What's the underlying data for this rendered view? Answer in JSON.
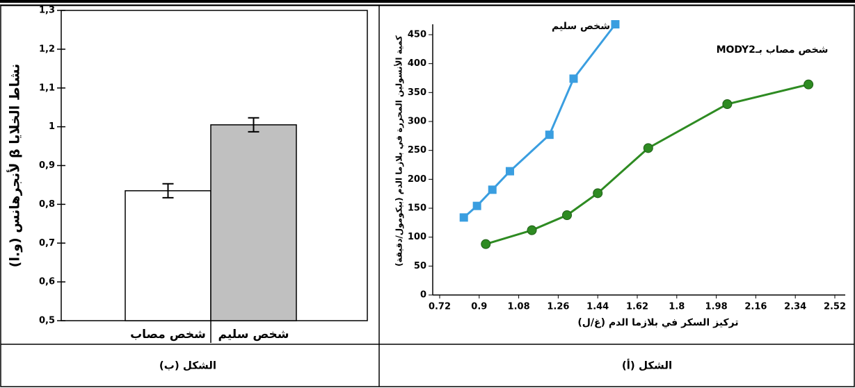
{
  "chart_data": [
    {
      "type": "line",
      "caption": "الشكل (أ)",
      "xlabel": "تركيز السكر في بلازما الدم (غ/ل)",
      "ylabel": "كمية الأنسولين المحررة في بلازما الدم (بيكومول/دقيقة)",
      "xlim": [
        0.72,
        2.52
      ],
      "xticks": [
        0.72,
        0.9,
        1.08,
        1.26,
        1.44,
        1.62,
        1.8,
        1.98,
        2.16,
        2.34,
        2.52
      ],
      "ylim": [
        0,
        450
      ],
      "yticks": [
        0,
        50,
        100,
        150,
        200,
        250,
        300,
        350,
        400,
        450
      ],
      "series": [
        {
          "name": "شخص سليم",
          "color": "#3a9ee0",
          "marker": "square",
          "x": [
            0.83,
            0.89,
            0.96,
            1.04,
            1.22,
            1.33,
            1.52
          ],
          "values": [
            134,
            154,
            182,
            214,
            277,
            374,
            468
          ]
        },
        {
          "name": "شخص مصاب بـMODY2",
          "color": "#2e8b22",
          "marker": "circle",
          "x": [
            0.93,
            1.14,
            1.3,
            1.44,
            1.67,
            2.03,
            2.4
          ],
          "values": [
            88,
            112,
            138,
            176,
            254,
            330,
            364
          ]
        }
      ]
    },
    {
      "type": "bar",
      "caption": "الشكل (ب)",
      "ylabel": "نشاط الخلايا β لأنجرهانس (و.ا)",
      "categories": [
        "شخص مصاب",
        "شخص سليم"
      ],
      "values": [
        0.835,
        1.005
      ],
      "errors": [
        0.018,
        0.018
      ],
      "colors": [
        "#ffffff",
        "#c0c0c0"
      ],
      "ylim": [
        0.5,
        1.3
      ],
      "yticks": [
        {
          "value": 0.5,
          "label": "0,5"
        },
        {
          "value": 0.6,
          "label": "0,6"
        },
        {
          "value": 0.7,
          "label": "0,7"
        },
        {
          "value": 0.8,
          "label": "0,8"
        },
        {
          "value": 0.9,
          "label": "0,9"
        },
        1,
        {
          "value": 1.1,
          "label": "1,1"
        },
        {
          "value": 1.2,
          "label": "1,2"
        },
        {
          "value": 1.3,
          "label": "1,3"
        }
      ]
    }
  ]
}
